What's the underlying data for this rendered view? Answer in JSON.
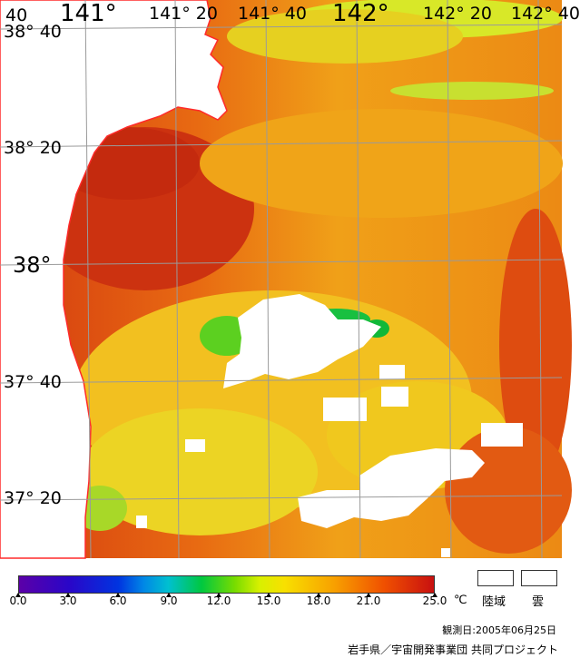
{
  "map": {
    "longitude_labels": [
      "141°",
      "141° 20",
      "141° 40",
      "142°",
      "142° 20",
      "142° 40"
    ],
    "latitude_labels": [
      "38° 40",
      "38° 20",
      "38°",
      "37° 40",
      "37° 20"
    ],
    "corner_label": "40",
    "land_color": "#ffffff",
    "coastline_color": "#ff2a2a",
    "graticule_color": "#9a9a9a"
  },
  "colorbar": {
    "ticks": [
      "0.0",
      "3.0",
      "6.0",
      "9.0",
      "12.0",
      "15.0",
      "18.0",
      "21.0",
      "25.0"
    ],
    "unit": "℃"
  },
  "legend": {
    "land": "陸域",
    "cloud": "雲"
  },
  "footer": {
    "observation_date": "観測日:2005年06月25日",
    "credit": "岩手県／宇宙開発事業団 共同プロジェクト"
  }
}
